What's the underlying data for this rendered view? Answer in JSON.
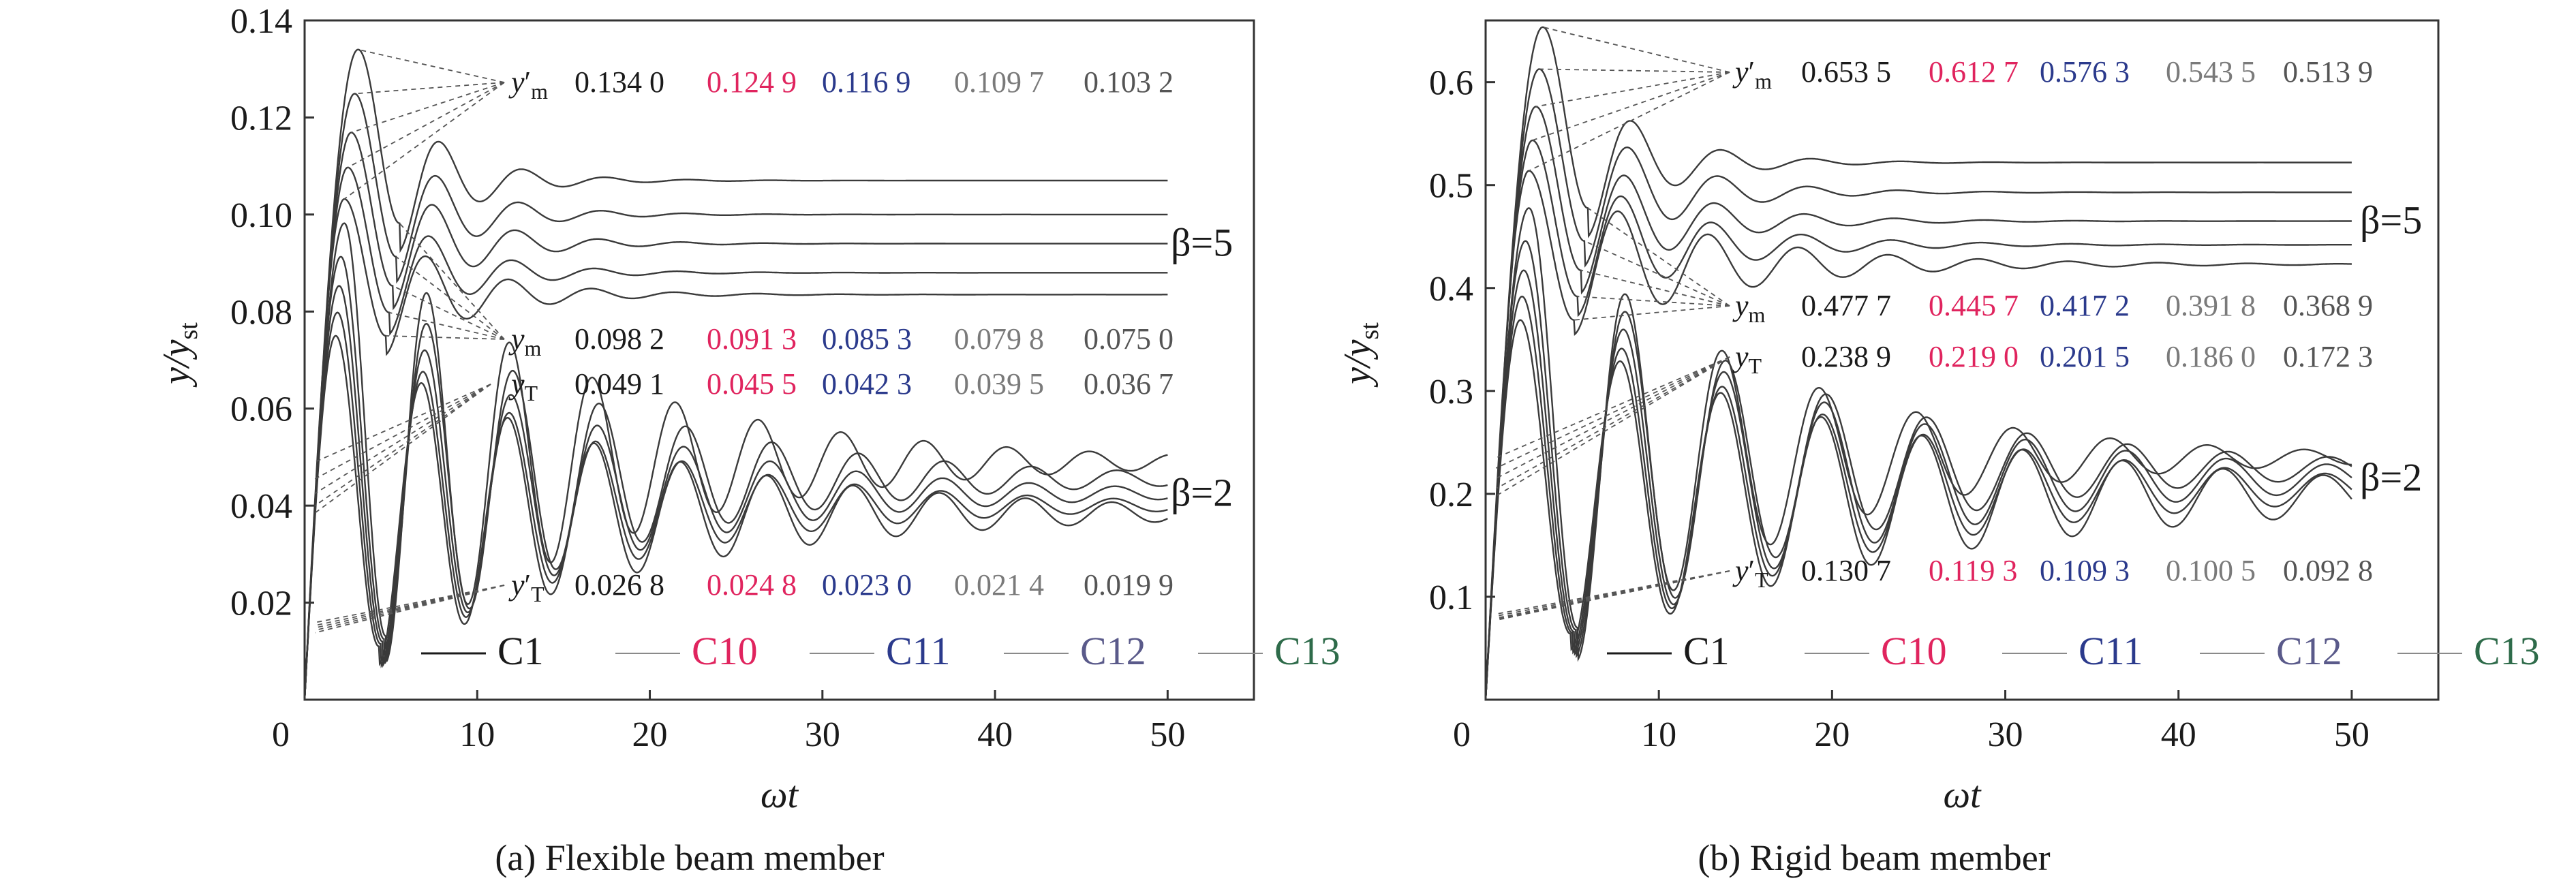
{
  "chart_data": [
    {
      "type": "line",
      "caption": "(a) Flexible beam member",
      "xlabel": "ωt",
      "ylabel": "y/y_st",
      "xlim": [
        0,
        55
      ],
      "ylim": [
        0,
        0.14
      ],
      "xticks": [
        "0",
        "10",
        "20",
        "30",
        "40",
        "50"
      ],
      "yticks": [
        "0.02",
        "0.04",
        "0.06",
        "0.08",
        "0.10",
        "0.12",
        "0.14"
      ],
      "grid": false,
      "legend_position": "bottom-right",
      "groups": [
        {
          "label": "β=5",
          "series": [
            {
              "name": "C1",
              "first_peak": {
                "x": 3.1,
                "y": 0.134
              },
              "first_trough": {
                "x": 5.5,
                "y": 0.0982
              },
              "settle": 0.107
            },
            {
              "name": "C10",
              "first_peak": {
                "x": 2.9,
                "y": 0.1249
              },
              "first_trough": {
                "x": 5.3,
                "y": 0.0913
              },
              "settle": 0.1
            },
            {
              "name": "C11",
              "first_peak": {
                "x": 2.7,
                "y": 0.1169
              },
              "first_trough": {
                "x": 5.1,
                "y": 0.0853
              },
              "settle": 0.094
            },
            {
              "name": "C12",
              "first_peak": {
                "x": 2.5,
                "y": 0.1097
              },
              "first_trough": {
                "x": 4.9,
                "y": 0.0798
              },
              "settle": 0.088
            },
            {
              "name": "C13",
              "first_peak": {
                "x": 2.3,
                "y": 0.1032
              },
              "first_trough": {
                "x": 4.7,
                "y": 0.075
              },
              "settle": 0.0835
            }
          ]
        },
        {
          "label": "β=2",
          "series": [
            {
              "name": "C1",
              "first_peak": {
                "x": 2.3,
                "y": 0.0982
              },
              "first_trough": {
                "x": 4.7,
                "y": 0.0131
              },
              "settle": 0.049
            },
            {
              "name": "C10",
              "first_peak": {
                "x": 2.1,
                "y": 0.0913
              },
              "first_trough": {
                "x": 4.6,
                "y": 0.0125
              },
              "settle": 0.0455
            },
            {
              "name": "C11",
              "first_peak": {
                "x": 2.0,
                "y": 0.0853
              },
              "first_trough": {
                "x": 4.5,
                "y": 0.012
              },
              "settle": 0.0425
            },
            {
              "name": "C12",
              "first_peak": {
                "x": 1.9,
                "y": 0.0798
              },
              "first_trough": {
                "x": 4.4,
                "y": 0.0115
              },
              "settle": 0.04
            },
            {
              "name": "C13",
              "first_peak": {
                "x": 1.8,
                "y": 0.075
              },
              "first_trough": {
                "x": 4.3,
                "y": 0.011
              },
              "settle": 0.0385
            }
          ]
        }
      ],
      "annotations": [
        {
          "symbol": "y′m",
          "values": [
            "0.134 0",
            "0.124 9",
            "0.116 9",
            "0.109 7",
            "0.103 2"
          ]
        },
        {
          "symbol": "ym",
          "values": [
            "0.098 2",
            "0.091 3",
            "0.085 3",
            "0.079 8",
            "0.075 0"
          ]
        },
        {
          "symbol": "yT",
          "values": [
            "0.049 1",
            "0.045 5",
            "0.042 3",
            "0.039 5",
            "0.036 7"
          ]
        },
        {
          "symbol": "y′T",
          "values": [
            "0.026 8",
            "0.024 8",
            "0.023 0",
            "0.021 4",
            "0.019 9"
          ]
        }
      ],
      "legend": [
        "C1",
        "C10",
        "C11",
        "C12",
        "C13"
      ]
    },
    {
      "type": "line",
      "caption": "(b) Rigid beam member",
      "xlabel": "ωt",
      "ylabel": "y/y_st",
      "xlim": [
        0,
        55
      ],
      "ylim": [
        0,
        0.66
      ],
      "xticks": [
        "0",
        "10",
        "20",
        "30",
        "40",
        "50"
      ],
      "yticks": [
        "0.1",
        "0.2",
        "0.3",
        "0.4",
        "0.5",
        "0.6"
      ],
      "grid": false,
      "legend_position": "bottom-right",
      "groups": [
        {
          "label": "β=5",
          "series": [
            {
              "name": "C1",
              "first_peak": {
                "x": 3.3,
                "y": 0.6535
              },
              "first_trough": {
                "x": 5.9,
                "y": 0.4777
              },
              "settle": 0.522
            },
            {
              "name": "C10",
              "first_peak": {
                "x": 3.1,
                "y": 0.6127
              },
              "first_trough": {
                "x": 5.7,
                "y": 0.4457
              },
              "settle": 0.493
            },
            {
              "name": "C11",
              "first_peak": {
                "x": 2.9,
                "y": 0.5763
              },
              "first_trough": {
                "x": 5.5,
                "y": 0.4172
              },
              "settle": 0.465
            },
            {
              "name": "C12",
              "first_peak": {
                "x": 2.7,
                "y": 0.5435
              },
              "first_trough": {
                "x": 5.3,
                "y": 0.3918
              },
              "settle": 0.442
            },
            {
              "name": "C13",
              "first_peak": {
                "x": 2.5,
                "y": 0.5139
              },
              "first_trough": {
                "x": 5.1,
                "y": 0.3689
              },
              "settle": 0.423
            }
          ]
        },
        {
          "label": "β=2",
          "series": [
            {
              "name": "C1",
              "first_peak": {
                "x": 2.5,
                "y": 0.4777
              },
              "first_trough": {
                "x": 5.3,
                "y": 0.07
              },
              "settle": 0.235
            },
            {
              "name": "C10",
              "first_peak": {
                "x": 2.3,
                "y": 0.4457
              },
              "first_trough": {
                "x": 5.2,
                "y": 0.068
              },
              "settle": 0.225
            },
            {
              "name": "C11",
              "first_peak": {
                "x": 2.2,
                "y": 0.4172
              },
              "first_trough": {
                "x": 5.1,
                "y": 0.066
              },
              "settle": 0.215
            },
            {
              "name": "C12",
              "first_peak": {
                "x": 2.1,
                "y": 0.3918
              },
              "first_trough": {
                "x": 5.0,
                "y": 0.065
              },
              "settle": 0.205
            },
            {
              "name": "C13",
              "first_peak": {
                "x": 2.0,
                "y": 0.3689
              },
              "first_trough": {
                "x": 4.9,
                "y": 0.064
              },
              "settle": 0.198
            }
          ]
        }
      ],
      "annotations": [
        {
          "symbol": "y′m",
          "values": [
            "0.653 5",
            "0.612 7",
            "0.576 3",
            "0.543 5",
            "0.513 9"
          ]
        },
        {
          "symbol": "ym",
          "values": [
            "0.477 7",
            "0.445 7",
            "0.417 2",
            "0.391 8",
            "0.368 9"
          ]
        },
        {
          "symbol": "yT",
          "values": [
            "0.238 9",
            "0.219 0",
            "0.201 5",
            "0.186 0",
            "0.172 3"
          ]
        },
        {
          "symbol": "y′T",
          "values": [
            "0.130 7",
            "0.119 3",
            "0.109 3",
            "0.100 5",
            "0.092 8"
          ]
        }
      ],
      "legend": [
        "C1",
        "C10",
        "C11",
        "C12",
        "C13"
      ]
    }
  ],
  "colors": {
    "C1": "#1a1a1a",
    "C10": "#e0245e",
    "C11": "#2b3a8c",
    "C12": "#5a5a8a",
    "C13": "#2e6b4a",
    "value_C12": "#7a7a7a",
    "value_C13": "#555555",
    "axis": "#333333",
    "curve": "#3a3a3a",
    "guide": "#555555"
  }
}
